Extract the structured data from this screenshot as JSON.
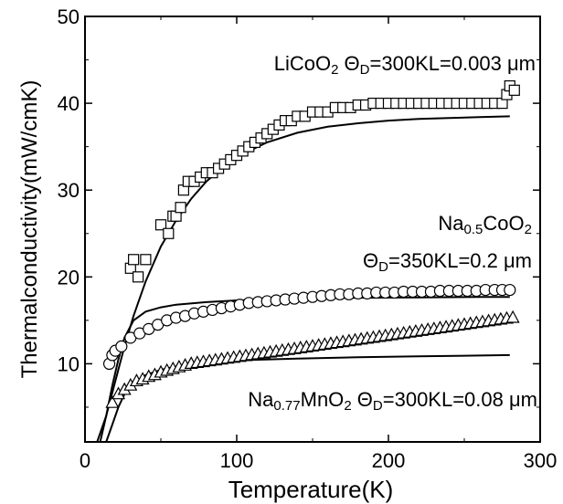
{
  "chart_data": {
    "type": "scatter",
    "xlabel": "Temperature(K)",
    "ylabel": "Thermalconductivity(mW/cmK)",
    "xlim": [
      0,
      300
    ],
    "ylim": [
      1,
      50
    ],
    "x_ticks": [
      0,
      100,
      200,
      300
    ],
    "y_ticks": [
      10,
      20,
      30,
      40,
      50
    ],
    "x_tick_labels": [
      "0",
      "100",
      "200",
      "300"
    ],
    "y_tick_labels": [
      "10",
      "20",
      "30",
      "40",
      "50"
    ],
    "grid": false,
    "annotations": [
      {
        "id": "licoo2",
        "parts": [
          [
            "LiCoO",
            "n"
          ],
          [
            "2",
            "sub"
          ],
          [
            " ",
            "n"
          ],
          [
            "Θ",
            "n"
          ],
          [
            "D",
            "sub"
          ],
          [
            "=300KL=0.003 μm",
            "n"
          ]
        ]
      },
      {
        "id": "nacoo2-1",
        "parts": [
          [
            "Na",
            "n"
          ],
          [
            "0.5",
            "sub"
          ],
          [
            "CoO",
            "n"
          ],
          [
            "2",
            "sub"
          ]
        ]
      },
      {
        "id": "nacoo2-2",
        "parts": [
          [
            "Θ",
            "n"
          ],
          [
            "D",
            "sub"
          ],
          [
            "=350KL=0.2 μm",
            "n"
          ]
        ]
      },
      {
        "id": "namno2",
        "parts": [
          [
            "Na",
            "n"
          ],
          [
            "0.77",
            "sub"
          ],
          [
            "MnO",
            "n"
          ],
          [
            "2",
            "sub"
          ],
          [
            " ",
            "n"
          ],
          [
            "Θ",
            "n"
          ],
          [
            "D",
            "sub"
          ],
          [
            "=300KL=0.08 μm",
            "n"
          ]
        ]
      }
    ],
    "series": [
      {
        "marker": "square",
        "points": [
          [
            30,
            21
          ],
          [
            32,
            22
          ],
          [
            35,
            20
          ],
          [
            40,
            22
          ],
          [
            50,
            26
          ],
          [
            55,
            25
          ],
          [
            58,
            27
          ],
          [
            60,
            27
          ],
          [
            63,
            28
          ],
          [
            65,
            30
          ],
          [
            68,
            31
          ],
          [
            72,
            31
          ],
          [
            76,
            31.5
          ],
          [
            80,
            32
          ],
          [
            84,
            32
          ],
          [
            88,
            32.5
          ],
          [
            92,
            33
          ],
          [
            96,
            33.5
          ],
          [
            100,
            34
          ],
          [
            104,
            34.5
          ],
          [
            108,
            35
          ],
          [
            112,
            35.5
          ],
          [
            116,
            36
          ],
          [
            120,
            36.5
          ],
          [
            124,
            37
          ],
          [
            128,
            37.5
          ],
          [
            132,
            38
          ],
          [
            136,
            38
          ],
          [
            140,
            38.5
          ],
          [
            145,
            38.5
          ],
          [
            150,
            39
          ],
          [
            155,
            39
          ],
          [
            160,
            39
          ],
          [
            165,
            39.5
          ],
          [
            170,
            39.5
          ],
          [
            175,
            39.5
          ],
          [
            180,
            39.8
          ],
          [
            185,
            39.8
          ],
          [
            190,
            40
          ],
          [
            195,
            40
          ],
          [
            200,
            40
          ],
          [
            205,
            40
          ],
          [
            210,
            40
          ],
          [
            215,
            40
          ],
          [
            220,
            40
          ],
          [
            225,
            40
          ],
          [
            230,
            40
          ],
          [
            235,
            40
          ],
          [
            240,
            40
          ],
          [
            245,
            40
          ],
          [
            250,
            40
          ],
          [
            255,
            40
          ],
          [
            260,
            40
          ],
          [
            265,
            40
          ],
          [
            270,
            40
          ],
          [
            275,
            40
          ],
          [
            278,
            41
          ],
          [
            280,
            42
          ],
          [
            283,
            41.5
          ]
        ]
      },
      {
        "marker": "circle",
        "points": [
          [
            16,
            10
          ],
          [
            18,
            11
          ],
          [
            20,
            11.5
          ],
          [
            24,
            12
          ],
          [
            30,
            13
          ],
          [
            36,
            13.5
          ],
          [
            42,
            14
          ],
          [
            48,
            14.5
          ],
          [
            54,
            15
          ],
          [
            60,
            15.3
          ],
          [
            66,
            15.5
          ],
          [
            72,
            15.8
          ],
          [
            78,
            16
          ],
          [
            84,
            16.2
          ],
          [
            90,
            16.4
          ],
          [
            96,
            16.6
          ],
          [
            102,
            16.8
          ],
          [
            108,
            17
          ],
          [
            114,
            17.1
          ],
          [
            120,
            17.2
          ],
          [
            126,
            17.3
          ],
          [
            132,
            17.4
          ],
          [
            138,
            17.5
          ],
          [
            144,
            17.6
          ],
          [
            150,
            17.7
          ],
          [
            156,
            17.8
          ],
          [
            162,
            17.9
          ],
          [
            168,
            18
          ],
          [
            174,
            18
          ],
          [
            180,
            18.1
          ],
          [
            186,
            18.1
          ],
          [
            192,
            18.2
          ],
          [
            198,
            18.2
          ],
          [
            204,
            18.2
          ],
          [
            210,
            18.3
          ],
          [
            216,
            18.3
          ],
          [
            222,
            18.3
          ],
          [
            228,
            18.3
          ],
          [
            234,
            18.4
          ],
          [
            240,
            18.4
          ],
          [
            246,
            18.4
          ],
          [
            252,
            18.4
          ],
          [
            258,
            18.4
          ],
          [
            264,
            18.5
          ],
          [
            270,
            18.5
          ],
          [
            275,
            18.5
          ],
          [
            280,
            18.5
          ]
        ]
      },
      {
        "marker": "triangle",
        "points": [
          [
            18,
            5.5
          ],
          [
            22,
            6.5
          ],
          [
            26,
            7
          ],
          [
            30,
            7.5
          ],
          [
            34,
            8
          ],
          [
            38,
            8.2
          ],
          [
            42,
            8.5
          ],
          [
            46,
            8.7
          ],
          [
            50,
            9
          ],
          [
            54,
            9.2
          ],
          [
            58,
            9.4
          ],
          [
            62,
            9.6
          ],
          [
            66,
            9.8
          ],
          [
            70,
            10
          ],
          [
            74,
            10.1
          ],
          [
            78,
            10.2
          ],
          [
            82,
            10.3
          ],
          [
            86,
            10.4
          ],
          [
            90,
            10.5
          ],
          [
            94,
            10.6
          ],
          [
            98,
            10.7
          ],
          [
            102,
            10.8
          ],
          [
            106,
            10.9
          ],
          [
            110,
            11
          ],
          [
            114,
            11.1
          ],
          [
            118,
            11.2
          ],
          [
            122,
            11.3
          ],
          [
            126,
            11.4
          ],
          [
            130,
            11.5
          ],
          [
            134,
            11.6
          ],
          [
            138,
            11.7
          ],
          [
            142,
            11.8
          ],
          [
            146,
            11.9
          ],
          [
            150,
            12
          ],
          [
            154,
            12.1
          ],
          [
            158,
            12.2
          ],
          [
            162,
            12.3
          ],
          [
            166,
            12.4
          ],
          [
            170,
            12.5
          ],
          [
            174,
            12.6
          ],
          [
            178,
            12.7
          ],
          [
            182,
            12.8
          ],
          [
            186,
            12.9
          ],
          [
            190,
            13
          ],
          [
            194,
            13.1
          ],
          [
            198,
            13.2
          ],
          [
            202,
            13.3
          ],
          [
            206,
            13.4
          ],
          [
            210,
            13.5
          ],
          [
            214,
            13.6
          ],
          [
            218,
            13.7
          ],
          [
            222,
            13.8
          ],
          [
            226,
            13.9
          ],
          [
            230,
            14
          ],
          [
            234,
            14.1
          ],
          [
            238,
            14.2
          ],
          [
            242,
            14.3
          ],
          [
            246,
            14.4
          ],
          [
            250,
            14.5
          ],
          [
            254,
            14.6
          ],
          [
            258,
            14.7
          ],
          [
            262,
            14.8
          ],
          [
            266,
            14.9
          ],
          [
            270,
            15
          ],
          [
            274,
            15.1
          ],
          [
            278,
            15.2
          ],
          [
            282,
            15.3
          ]
        ]
      }
    ],
    "fits": [
      {
        "points": [
          [
            8,
            1
          ],
          [
            14,
            4
          ],
          [
            20,
            8
          ],
          [
            26,
            12
          ],
          [
            32,
            15.5
          ],
          [
            40,
            19.5
          ],
          [
            50,
            23.5
          ],
          [
            60,
            26.5
          ],
          [
            70,
            29
          ],
          [
            80,
            31
          ],
          [
            90,
            32.5
          ],
          [
            100,
            33.8
          ],
          [
            120,
            35.5
          ],
          [
            140,
            36.6
          ],
          [
            160,
            37.3
          ],
          [
            180,
            37.7
          ],
          [
            200,
            38
          ],
          [
            220,
            38.2
          ],
          [
            240,
            38.3
          ],
          [
            260,
            38.4
          ],
          [
            280,
            38.5
          ]
        ]
      },
      {
        "points": [
          [
            10,
            1
          ],
          [
            14,
            4
          ],
          [
            18,
            7.5
          ],
          [
            22,
            10.5
          ],
          [
            26,
            13
          ],
          [
            32,
            15
          ],
          [
            40,
            16
          ],
          [
            50,
            16.5
          ],
          [
            60,
            16.8
          ],
          [
            80,
            17.1
          ],
          [
            100,
            17.3
          ],
          [
            140,
            17.5
          ],
          [
            180,
            17.6
          ],
          [
            220,
            17.65
          ],
          [
            260,
            17.7
          ],
          [
            280,
            17.7
          ]
        ]
      },
      {
        "points": [
          [
            14,
            1
          ],
          [
            18,
            3
          ],
          [
            22,
            5
          ],
          [
            26,
            6.5
          ],
          [
            32,
            7.8
          ],
          [
            40,
            8.7
          ],
          [
            50,
            9.3
          ],
          [
            60,
            9.7
          ],
          [
            80,
            10.1
          ],
          [
            100,
            10.4
          ],
          [
            140,
            10.6
          ],
          [
            180,
            10.75
          ],
          [
            220,
            10.85
          ],
          [
            260,
            10.95
          ],
          [
            280,
            11
          ]
        ]
      }
    ]
  }
}
